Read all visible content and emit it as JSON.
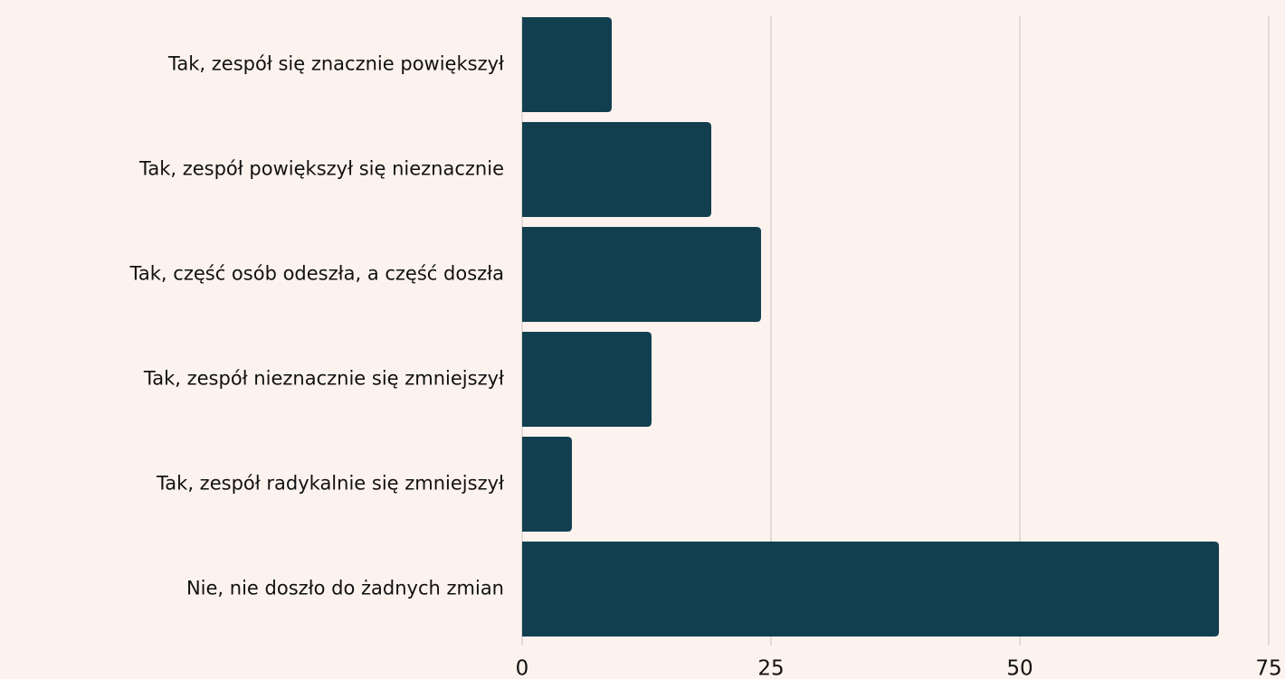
{
  "chart_data": {
    "type": "hbar",
    "categories": [
      "Tak, zespół się znacznie powiększył",
      "Tak, zespół powiększył się nieznacznie",
      "Tak, część osób odeszła, a część doszła",
      "Tak, zespół nieznacznie się zmniejszył",
      "Tak, zespół radykalnie się zmniejszył",
      "Nie, nie doszło do żadnych zmian"
    ],
    "values": [
      9,
      19,
      24,
      13,
      5,
      70
    ],
    "color": "#123f4f",
    "xlim": [
      0,
      75
    ],
    "xticks": [
      0,
      25,
      50,
      75
    ],
    "grid": true
  }
}
